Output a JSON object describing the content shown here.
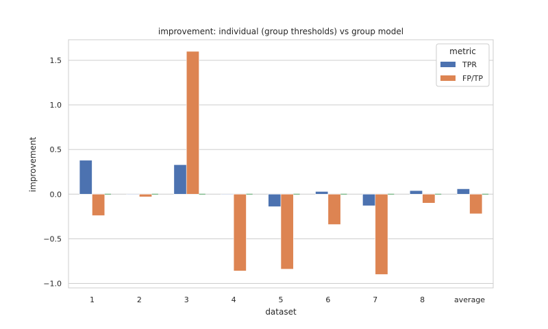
{
  "chart_data": {
    "type": "bar",
    "title": "improvement: individual (group thresholds)  vs  group model",
    "xlabel": "dataset",
    "ylabel": "improvement",
    "categories": [
      "1",
      "2",
      "3",
      "4",
      "5",
      "6",
      "7",
      "8",
      "average"
    ],
    "series": [
      {
        "name": "TPR",
        "color": "#4c72b0",
        "values": [
          0.38,
          0.0,
          0.33,
          0.0,
          -0.14,
          0.03,
          -0.13,
          0.04,
          0.06
        ]
      },
      {
        "name": "FP/TP",
        "color": "#dd8452",
        "values": [
          -0.24,
          -0.03,
          1.6,
          -0.86,
          -0.84,
          -0.34,
          -0.9,
          -0.1,
          -0.22
        ]
      }
    ],
    "ylim": [
      -1.05,
      1.73
    ],
    "yticks": [
      -1.0,
      -0.5,
      0.0,
      0.5,
      1.0,
      1.5
    ],
    "ytick_labels": [
      "−1.0",
      "−0.5",
      "0.0",
      "0.5",
      "1.0",
      "1.5"
    ],
    "grid": "horizontal",
    "legend": {
      "title": "metric",
      "placement": "top-right"
    }
  }
}
